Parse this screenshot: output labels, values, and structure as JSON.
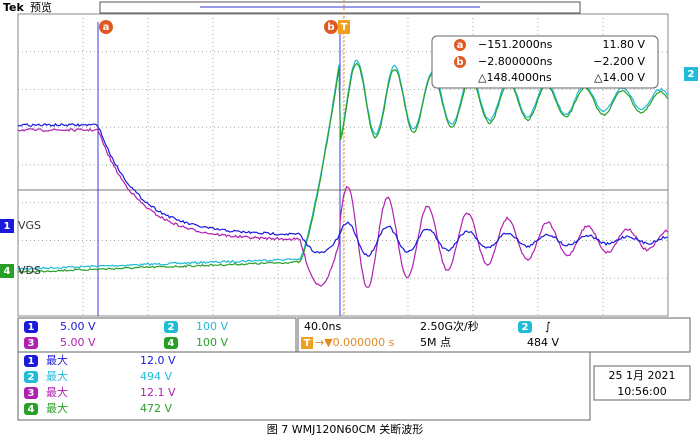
{
  "header": {
    "brand": "Tek",
    "mode": "预览"
  },
  "cursors": {
    "a": "a",
    "b": "b",
    "trigger": "T"
  },
  "readout": {
    "rows": [
      {
        "icon": "a",
        "time": "−151.2000ns",
        "volt": "11.80 V"
      },
      {
        "icon": "b",
        "time": "−2.800000ns",
        "volt": "−2.200 V"
      },
      {
        "time": "△148.4000ns",
        "volt": "△14.00 V"
      }
    ]
  },
  "channel_markers": [
    {
      "number": "1",
      "label": "VGS"
    },
    {
      "number": "4",
      "label": "VDS"
    },
    {
      "number": "2"
    }
  ],
  "channels": [
    {
      "number": "1",
      "scale": "5.00 V"
    },
    {
      "number": "2",
      "scale": "100 V"
    },
    {
      "number": "3",
      "scale": "5.00 V"
    },
    {
      "number": "4",
      "scale": "100 V"
    }
  ],
  "timebase": {
    "scale": "40.0ns",
    "rate": "2.50G次/秒",
    "trigger_source": "2",
    "trigger_slope": "∫",
    "trigger_icon": "T",
    "trigger_delay": "→▼0.000000 s",
    "points": "5M 点",
    "trigger_level": "484 V"
  },
  "measurements": [
    {
      "number": "1",
      "name": "最大",
      "value": "12.0 V"
    },
    {
      "number": "2",
      "name": "最大",
      "value": "494 V"
    },
    {
      "number": "3",
      "name": "最大",
      "value": "12.1 V"
    },
    {
      "number": "4",
      "name": "最大",
      "value": "472 V"
    }
  ],
  "datetime": {
    "date": "25 1月 2021",
    "time": "10:56:00"
  },
  "caption": "图 7 WMJ120N60CM  关断波形"
}
